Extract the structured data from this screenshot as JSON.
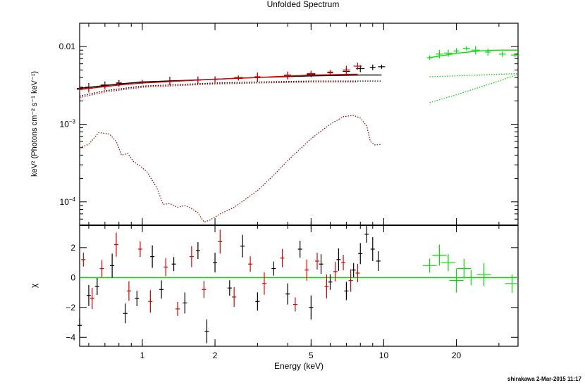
{
  "chart_data": {
    "type": "scatter",
    "title": "Unfolded Spectrum",
    "xlabel": "Energy (keV)",
    "ylabel_top": "keV² (Photons cm⁻² s⁻¹ keV⁻¹)",
    "ylabel_bottom": "χ",
    "footer": "shirakawa  2-Mar-2015 11:17",
    "x_scale": "log",
    "xlim": [
      0.55,
      36
    ],
    "x_ticks": [
      {
        "value": 1,
        "label": "1"
      },
      {
        "value": 2,
        "label": "2"
      },
      {
        "value": 5,
        "label": "5"
      },
      {
        "value": 10,
        "label": "10"
      },
      {
        "value": 20,
        "label": "20"
      }
    ],
    "top_panel": {
      "y_scale": "log",
      "ylim": [
        5e-05,
        0.02
      ],
      "y_ticks": [
        {
          "value": 0.01,
          "label": "0.01",
          "exp": ""
        },
        {
          "value": 0.001,
          "label": "10",
          "exp": "−3"
        },
        {
          "value": 0.0001,
          "label": "10",
          "exp": "−4"
        }
      ],
      "series": [
        {
          "color": "#000000",
          "style": "crosses",
          "x": [
            0.55,
            0.6,
            0.7,
            0.8,
            1.0,
            1.3,
            1.7,
            2.0,
            2.5,
            3.0,
            4.0,
            5.0,
            6.0,
            7.0,
            8.0,
            9.0,
            9.8
          ],
          "y": [
            0.0029,
            0.003,
            0.0032,
            0.0034,
            0.0035,
            0.0036,
            0.0037,
            0.0038,
            0.0039,
            0.004,
            0.0042,
            0.0044,
            0.0046,
            0.0048,
            0.0052,
            0.0054,
            0.0055
          ]
        },
        {
          "color": "#e00000",
          "style": "crosses",
          "x": [
            0.55,
            0.6,
            0.7,
            0.8,
            1.0,
            1.3,
            1.7,
            2.0,
            2.5,
            3.0,
            4.0,
            5.0,
            6.0,
            7.0,
            7.8
          ],
          "y": [
            0.0028,
            0.0029,
            0.0031,
            0.0033,
            0.0035,
            0.0036,
            0.0037,
            0.0038,
            0.004,
            0.0041,
            0.0043,
            0.0045,
            0.0047,
            0.005,
            0.0056
          ]
        },
        {
          "color": "#00e000",
          "style": "crosses",
          "x": [
            15.5,
            17,
            18.5,
            20,
            22,
            24,
            27,
            31,
            35
          ],
          "y": [
            0.0072,
            0.008,
            0.0082,
            0.0088,
            0.0095,
            0.009,
            0.0085,
            0.008,
            0.0078
          ]
        },
        {
          "color": "#000000",
          "style": "line",
          "x": [
            0.55,
            0.8,
            1.0,
            2.0,
            3.0,
            5.0,
            8.0,
            9.8
          ],
          "y": [
            0.0029,
            0.0033,
            0.0035,
            0.0038,
            0.004,
            0.0042,
            0.0043,
            0.0043
          ]
        },
        {
          "color": "#e00000",
          "style": "line",
          "x": [
            0.55,
            0.8,
            1.0,
            2.0,
            3.0,
            5.0,
            7.8
          ],
          "y": [
            0.0028,
            0.0032,
            0.0034,
            0.0038,
            0.004,
            0.0043,
            0.0044
          ]
        },
        {
          "color": "#00e000",
          "style": "line",
          "x": [
            15.5,
            20,
            25,
            30,
            36
          ],
          "y": [
            0.0072,
            0.0082,
            0.0088,
            0.009,
            0.009
          ]
        },
        {
          "color": "#000000",
          "style": "dotted",
          "x": [
            0.55,
            0.7,
            1.0,
            2.0,
            3.0,
            5.0,
            8.0,
            9.8
          ],
          "y": [
            0.0023,
            0.0027,
            0.0031,
            0.0034,
            0.0035,
            0.0036,
            0.0036,
            0.0036
          ]
        },
        {
          "color": "#e00000",
          "style": "dotted",
          "x": [
            0.55,
            0.7,
            1.0,
            2.0,
            3.0,
            5.0,
            7.8
          ],
          "y": [
            0.0022,
            0.0026,
            0.003,
            0.0033,
            0.0034,
            0.0035,
            0.0035
          ]
        },
        {
          "color": "#00e000",
          "style": "dotted",
          "x": [
            15.5,
            20,
            25,
            30,
            36
          ],
          "y": [
            0.0041,
            0.0042,
            0.0043,
            0.0044,
            0.0045
          ]
        },
        {
          "color": "#00e000",
          "style": "dotted",
          "x": [
            15.5,
            20,
            25,
            30,
            36
          ],
          "y": [
            0.0019,
            0.0024,
            0.003,
            0.0036,
            0.0044
          ]
        },
        {
          "color": "#a01010",
          "style": "dotted",
          "x": [
            0.55,
            0.6,
            0.66,
            0.73,
            0.78,
            0.82,
            0.87,
            0.92,
            0.98,
            1.05,
            1.15,
            1.22,
            1.3,
            1.4,
            1.5,
            1.6,
            1.7,
            1.8,
            1.9,
            2.1,
            2.4,
            2.7,
            3.0,
            3.5,
            4.0,
            5.0,
            6.0,
            6.8,
            7.5,
            8.0,
            8.5,
            8.8,
            9.2,
            9.8
          ],
          "y": [
            0.0005,
            0.00055,
            0.00078,
            0.00075,
            0.0006,
            0.0004,
            0.00042,
            0.00033,
            0.00029,
            0.00024,
            0.00015,
            9.3e-05,
            9.5e-05,
            8.5e-05,
            9e-05,
            8.2e-05,
            7.2e-05,
            5.5e-05,
            5.8e-05,
            7e-05,
            8.5e-05,
            0.00011,
            0.00014,
            0.00022,
            0.00034,
            0.00065,
            0.001,
            0.00125,
            0.0013,
            0.0012,
            0.00095,
            0.0006,
            0.00054,
            0.00055
          ]
        }
      ]
    },
    "bottom_panel": {
      "y_scale": "linear",
      "ylim": [
        -4.6,
        3.5
      ],
      "y_ticks": [
        {
          "value": 2,
          "label": "2"
        },
        {
          "value": 0,
          "label": "0"
        },
        {
          "value": -2,
          "label": "−2"
        },
        {
          "value": -4,
          "label": "−4"
        }
      ],
      "zero_line_color": "#00e000",
      "series": [
        {
          "color": "#000000",
          "x": [
            0.55,
            0.6,
            0.65,
            0.75,
            0.85,
            0.95,
            1.1,
            1.2,
            1.35,
            1.5,
            1.7,
            1.85,
            2.0,
            2.3,
            2.6,
            3.0,
            3.5,
            4.0,
            4.5,
            5.0,
            5.5,
            6.0,
            6.5,
            7.0,
            7.5,
            8.0,
            8.5,
            9.0,
            9.5
          ],
          "y": [
            -3.2,
            -1.2,
            -0.6,
            0.8,
            -2.4,
            -1.4,
            1.4,
            -0.8,
            0.9,
            -1.7,
            1.8,
            -3.6,
            1.0,
            -0.7,
            2.1,
            -1.6,
            0.6,
            -1.1,
            1.9,
            -2.0,
            0.9,
            -0.3,
            1.2,
            -0.9,
            0.5,
            1.6,
            2.9,
            1.9,
            1.1
          ]
        },
        {
          "color": "#e00000",
          "x": [
            0.57,
            0.62,
            0.68,
            0.78,
            0.88,
            0.98,
            1.08,
            1.25,
            1.4,
            1.6,
            1.8,
            2.1,
            2.4,
            2.8,
            3.2,
            3.8,
            4.3,
            4.8,
            5.3,
            5.8,
            6.3,
            6.8,
            7.3,
            7.8
          ],
          "y": [
            1.2,
            -1.4,
            0.6,
            2.2,
            -0.9,
            1.9,
            -1.6,
            0.7,
            -2.1,
            1.4,
            -0.8,
            2.4,
            -1.3,
            0.9,
            -0.4,
            1.3,
            -1.8,
            0.5,
            1.1,
            -0.6,
            0.4,
            1.0,
            -0.2,
            0.3
          ]
        },
        {
          "color": "#00e000",
          "x": [
            15.5,
            17,
            18.5,
            20,
            21.5,
            23,
            26,
            34
          ],
          "y": [
            0.8,
            1.5,
            1.0,
            -0.2,
            0.6,
            0.0,
            0.2,
            -0.4
          ]
        }
      ]
    }
  }
}
